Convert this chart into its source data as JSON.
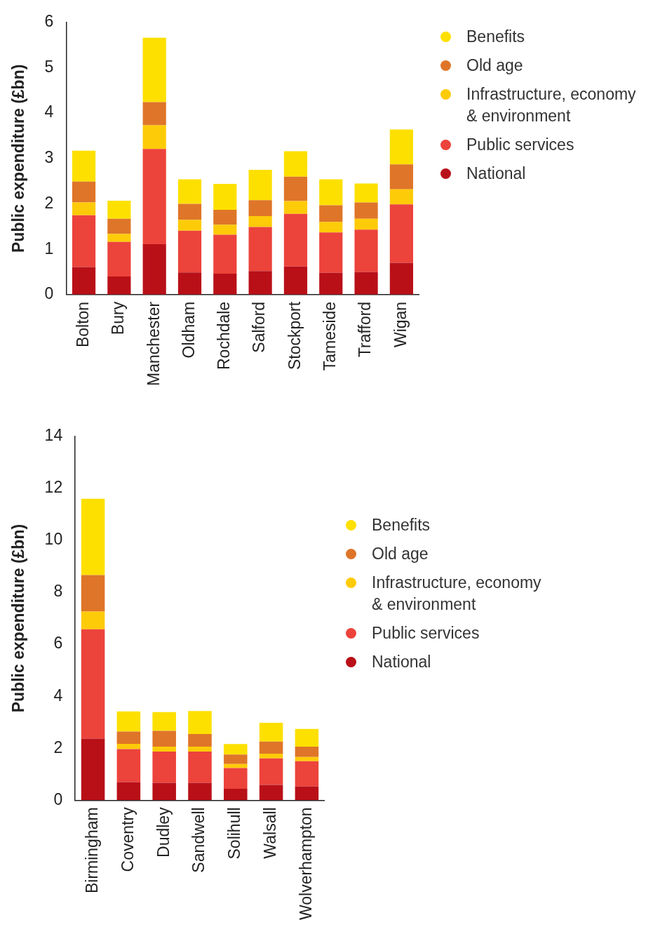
{
  "chart_data": [
    {
      "type": "bar",
      "stacked": true,
      "legend": "right",
      "ylabel": "Public expenditure (£bn)",
      "ylim": [
        0,
        6
      ],
      "yticks": [
        0,
        1,
        2,
        3,
        4,
        5,
        6
      ],
      "categories": [
        "Bolton",
        "Bury",
        "Manchester",
        "Oldham",
        "Rochdale",
        "Salford",
        "Stockport",
        "Tameside",
        "Trafford",
        "Wigan"
      ],
      "series": [
        {
          "name": "National",
          "color": "#b91018",
          "values": [
            0.61,
            0.4,
            1.11,
            0.49,
            0.46,
            0.52,
            0.62,
            0.48,
            0.5,
            0.7
          ]
        },
        {
          "name": "Public services",
          "color": "#ec433b",
          "values": [
            1.14,
            0.76,
            2.1,
            0.92,
            0.86,
            0.97,
            1.16,
            0.89,
            0.93,
            1.29
          ]
        },
        {
          "name": "Infrastructure, economy & environment",
          "color": "#fecb08",
          "values": [
            0.28,
            0.18,
            0.52,
            0.24,
            0.22,
            0.24,
            0.28,
            0.23,
            0.24,
            0.33
          ]
        },
        {
          "name": "Old age",
          "color": "#df7528",
          "values": [
            0.46,
            0.33,
            0.51,
            0.35,
            0.33,
            0.35,
            0.54,
            0.37,
            0.36,
            0.55
          ]
        },
        {
          "name": "Benefits",
          "color": "#fde000",
          "values": [
            0.68,
            0.4,
            1.42,
            0.54,
            0.57,
            0.67,
            0.56,
            0.57,
            0.42,
            0.77
          ]
        }
      ]
    },
    {
      "type": "bar",
      "stacked": true,
      "legend": "right",
      "ylabel": "Public expenditure (£bn)",
      "ylim": [
        0,
        14
      ],
      "yticks": [
        0,
        2,
        4,
        6,
        8,
        10,
        12,
        14
      ],
      "categories": [
        "Birmingham",
        "Coventry",
        "Dudley",
        "Sandwell",
        "Solihull",
        "Walsall",
        "Wolverhampton"
      ],
      "series": [
        {
          "name": "National",
          "color": "#b91018",
          "values": [
            2.37,
            0.7,
            0.67,
            0.67,
            0.44,
            0.59,
            0.53
          ]
        },
        {
          "name": "Public services",
          "color": "#ec433b",
          "values": [
            4.21,
            1.27,
            1.2,
            1.2,
            0.8,
            1.02,
            0.97
          ]
        },
        {
          "name": "Infrastructure, economy & environment",
          "color": "#fecb08",
          "values": [
            0.68,
            0.2,
            0.19,
            0.19,
            0.15,
            0.18,
            0.16
          ]
        },
        {
          "name": "Old age",
          "color": "#df7528",
          "values": [
            1.4,
            0.47,
            0.61,
            0.49,
            0.37,
            0.47,
            0.4
          ]
        },
        {
          "name": "Benefits",
          "color": "#fde000",
          "values": [
            2.94,
            0.78,
            0.72,
            0.88,
            0.4,
            0.72,
            0.68
          ]
        }
      ]
    }
  ]
}
